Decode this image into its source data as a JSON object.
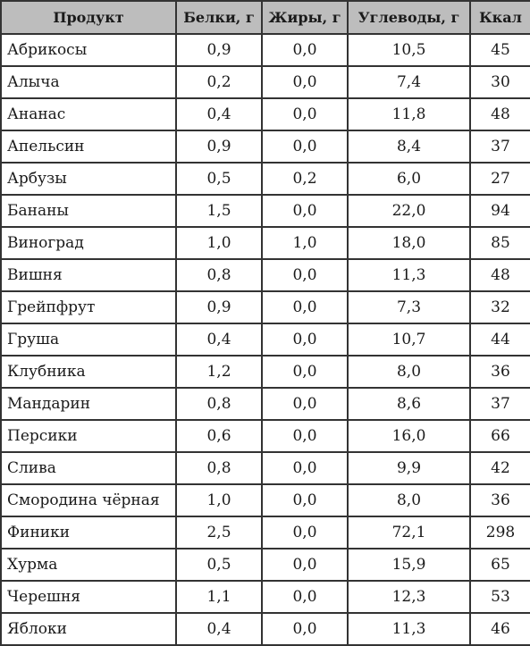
{
  "table": {
    "headers": [
      "Продукт",
      "Белки, г",
      "Жиры, г",
      "Углеводы, г",
      "Ккал"
    ],
    "rows": [
      [
        "Абрикосы",
        "0,9",
        "0,0",
        "10,5",
        "45"
      ],
      [
        "Алыча",
        "0,2",
        "0,0",
        "7,4",
        "30"
      ],
      [
        "Ананас",
        "0,4",
        "0,0",
        "11,8",
        "48"
      ],
      [
        "Апельсин",
        "0,9",
        "0,0",
        "8,4",
        "37"
      ],
      [
        "Арбузы",
        "0,5",
        "0,2",
        "6,0",
        "27"
      ],
      [
        "Бананы",
        "1,5",
        "0,0",
        "22,0",
        "94"
      ],
      [
        "Виноград",
        "1,0",
        "1,0",
        "18,0",
        "85"
      ],
      [
        "Вишня",
        "0,8",
        "0,0",
        "11,3",
        "48"
      ],
      [
        "Грейпфрут",
        "0,9",
        "0,0",
        "7,3",
        "32"
      ],
      [
        "Груша",
        "0,4",
        "0,0",
        "10,7",
        "44"
      ],
      [
        "Клубника",
        "1,2",
        "0,0",
        "8,0",
        "36"
      ],
      [
        "Мандарин",
        "0,8",
        "0,0",
        "8,6",
        "37"
      ],
      [
        "Персики",
        "0,6",
        "0,0",
        "16,0",
        "66"
      ],
      [
        "Слива",
        "0,8",
        "0,0",
        "9,9",
        "42"
      ],
      [
        "Смородина чёрная",
        "1,0",
        "0,0",
        "8,0",
        "36"
      ],
      [
        "Финики",
        "2,5",
        "0,0",
        "72,1",
        "298"
      ],
      [
        "Хурма",
        "0,5",
        "0,0",
        "15,9",
        "65"
      ],
      [
        "Черешня",
        "1,1",
        "0,0",
        "12,3",
        "53"
      ],
      [
        "Яблоки",
        "0,4",
        "0,0",
        "11,3",
        "46"
      ]
    ]
  },
  "colors": {
    "header_background": "#bdbdbd",
    "border": "#333333",
    "text": "#1a1a1a"
  }
}
